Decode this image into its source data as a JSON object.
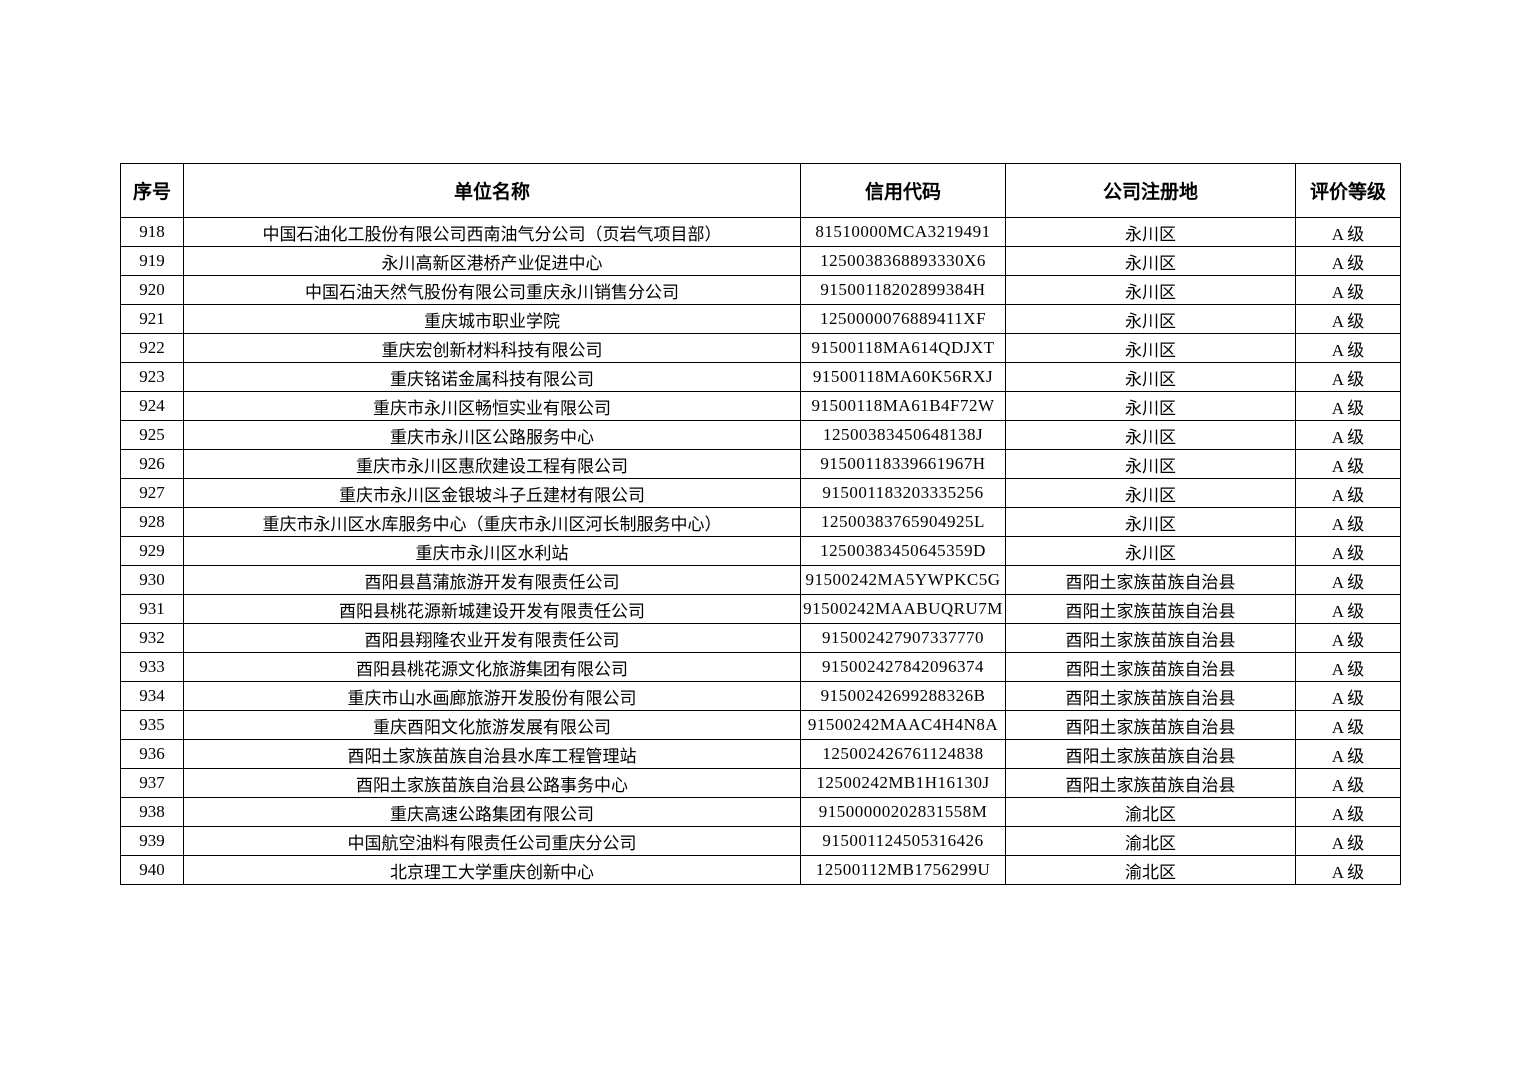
{
  "table": {
    "columns": [
      {
        "key": "index",
        "label": "序号"
      },
      {
        "key": "name",
        "label": "单位名称"
      },
      {
        "key": "code",
        "label": "信用代码"
      },
      {
        "key": "location",
        "label": "公司注册地"
      },
      {
        "key": "grade",
        "label": "评价等级"
      }
    ],
    "rows": [
      [
        "918",
        "中国石油化工股份有限公司西南油气分公司（页岩气项目部）",
        "81510000MCA3219491",
        "永川区",
        "A 级"
      ],
      [
        "919",
        "永川高新区港桥产业促进中心",
        "1250038368893330X6",
        "永川区",
        "A 级"
      ],
      [
        "920",
        "中国石油天然气股份有限公司重庆永川销售分公司",
        "91500118202899384H",
        "永川区",
        "A 级"
      ],
      [
        "921",
        "重庆城市职业学院",
        "1250000076889411XF",
        "永川区",
        "A 级"
      ],
      [
        "922",
        "重庆宏创新材料科技有限公司",
        "91500118MA614QDJXT",
        "永川区",
        "A 级"
      ],
      [
        "923",
        "重庆铭诺金属科技有限公司",
        "91500118MA60K56RXJ",
        "永川区",
        "A 级"
      ],
      [
        "924",
        "重庆市永川区畅恒实业有限公司",
        "91500118MA61B4F72W",
        "永川区",
        "A 级"
      ],
      [
        "925",
        "重庆市永川区公路服务中心",
        "12500383450648138J",
        "永川区",
        "A 级"
      ],
      [
        "926",
        "重庆市永川区惠欣建设工程有限公司",
        "91500118339661967H",
        "永川区",
        "A 级"
      ],
      [
        "927",
        "重庆市永川区金银坡斗子丘建材有限公司",
        "915001183203335256",
        "永川区",
        "A 级"
      ],
      [
        "928",
        "重庆市永川区水库服务中心（重庆市永川区河长制服务中心）",
        "12500383765904925L",
        "永川区",
        "A 级"
      ],
      [
        "929",
        "重庆市永川区水利站",
        "12500383450645359D",
        "永川区",
        "A 级"
      ],
      [
        "930",
        "酉阳县菖蒲旅游开发有限责任公司",
        "91500242MA5YWPKC5G",
        "酉阳土家族苗族自治县",
        "A 级"
      ],
      [
        "931",
        "酉阳县桃花源新城建设开发有限责任公司",
        "91500242MAABUQRU7M",
        "酉阳土家族苗族自治县",
        "A 级"
      ],
      [
        "932",
        "酉阳县翔隆农业开发有限责任公司",
        "915002427907337770",
        "酉阳土家族苗族自治县",
        "A 级"
      ],
      [
        "933",
        "酉阳县桃花源文化旅游集团有限公司",
        "915002427842096374",
        "酉阳土家族苗族自治县",
        "A 级"
      ],
      [
        "934",
        "重庆市山水画廊旅游开发股份有限公司",
        "91500242699288326B",
        "酉阳土家族苗族自治县",
        "A 级"
      ],
      [
        "935",
        "重庆酉阳文化旅游发展有限公司",
        "91500242MAAC4H4N8A",
        "酉阳土家族苗族自治县",
        "A 级"
      ],
      [
        "936",
        "酉阳土家族苗族自治县水库工程管理站",
        "125002426761124838",
        "酉阳土家族苗族自治县",
        "A 级"
      ],
      [
        "937",
        "酉阳土家族苗族自治县公路事务中心",
        "12500242MB1H16130J",
        "酉阳土家族苗族自治县",
        "A 级"
      ],
      [
        "938",
        "重庆高速公路集团有限公司",
        "91500000202831558M",
        "渝北区",
        "A 级"
      ],
      [
        "939",
        "中国航空油料有限责任公司重庆分公司",
        "915001124505316426",
        "渝北区",
        "A 级"
      ],
      [
        "940",
        "北京理工大学重庆创新中心",
        "12500112MB1756299U",
        "渝北区",
        "A 级"
      ]
    ]
  },
  "colors": {
    "text": "#000000",
    "border": "#000000",
    "background": "#ffffff"
  }
}
